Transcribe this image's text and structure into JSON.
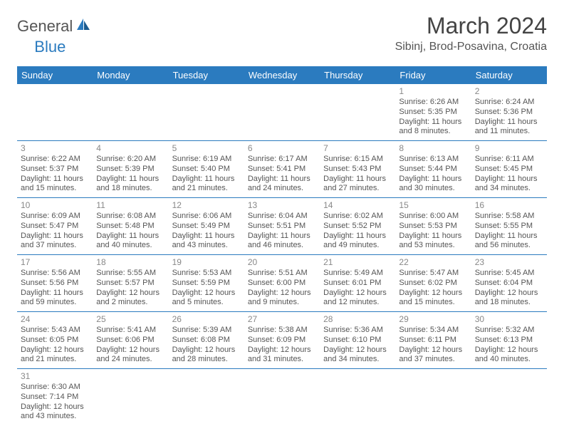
{
  "logo": {
    "general": "General",
    "blue": "Blue"
  },
  "title": "March 2024",
  "location": "Sibinj, Brod-Posavina, Croatia",
  "colors": {
    "header_bg": "#2b7bbf",
    "header_fg": "#ffffff",
    "border": "#2b7bbf"
  },
  "day_headers": [
    "Sunday",
    "Monday",
    "Tuesday",
    "Wednesday",
    "Thursday",
    "Friday",
    "Saturday"
  ],
  "weeks": [
    [
      null,
      null,
      null,
      null,
      null,
      {
        "n": "1",
        "sr": "Sunrise: 6:26 AM",
        "ss": "Sunset: 5:35 PM",
        "dl": "Daylight: 11 hours and 8 minutes."
      },
      {
        "n": "2",
        "sr": "Sunrise: 6:24 AM",
        "ss": "Sunset: 5:36 PM",
        "dl": "Daylight: 11 hours and 11 minutes."
      }
    ],
    [
      {
        "n": "3",
        "sr": "Sunrise: 6:22 AM",
        "ss": "Sunset: 5:37 PM",
        "dl": "Daylight: 11 hours and 15 minutes."
      },
      {
        "n": "4",
        "sr": "Sunrise: 6:20 AM",
        "ss": "Sunset: 5:39 PM",
        "dl": "Daylight: 11 hours and 18 minutes."
      },
      {
        "n": "5",
        "sr": "Sunrise: 6:19 AM",
        "ss": "Sunset: 5:40 PM",
        "dl": "Daylight: 11 hours and 21 minutes."
      },
      {
        "n": "6",
        "sr": "Sunrise: 6:17 AM",
        "ss": "Sunset: 5:41 PM",
        "dl": "Daylight: 11 hours and 24 minutes."
      },
      {
        "n": "7",
        "sr": "Sunrise: 6:15 AM",
        "ss": "Sunset: 5:43 PM",
        "dl": "Daylight: 11 hours and 27 minutes."
      },
      {
        "n": "8",
        "sr": "Sunrise: 6:13 AM",
        "ss": "Sunset: 5:44 PM",
        "dl": "Daylight: 11 hours and 30 minutes."
      },
      {
        "n": "9",
        "sr": "Sunrise: 6:11 AM",
        "ss": "Sunset: 5:45 PM",
        "dl": "Daylight: 11 hours and 34 minutes."
      }
    ],
    [
      {
        "n": "10",
        "sr": "Sunrise: 6:09 AM",
        "ss": "Sunset: 5:47 PM",
        "dl": "Daylight: 11 hours and 37 minutes."
      },
      {
        "n": "11",
        "sr": "Sunrise: 6:08 AM",
        "ss": "Sunset: 5:48 PM",
        "dl": "Daylight: 11 hours and 40 minutes."
      },
      {
        "n": "12",
        "sr": "Sunrise: 6:06 AM",
        "ss": "Sunset: 5:49 PM",
        "dl": "Daylight: 11 hours and 43 minutes."
      },
      {
        "n": "13",
        "sr": "Sunrise: 6:04 AM",
        "ss": "Sunset: 5:51 PM",
        "dl": "Daylight: 11 hours and 46 minutes."
      },
      {
        "n": "14",
        "sr": "Sunrise: 6:02 AM",
        "ss": "Sunset: 5:52 PM",
        "dl": "Daylight: 11 hours and 49 minutes."
      },
      {
        "n": "15",
        "sr": "Sunrise: 6:00 AM",
        "ss": "Sunset: 5:53 PM",
        "dl": "Daylight: 11 hours and 53 minutes."
      },
      {
        "n": "16",
        "sr": "Sunrise: 5:58 AM",
        "ss": "Sunset: 5:55 PM",
        "dl": "Daylight: 11 hours and 56 minutes."
      }
    ],
    [
      {
        "n": "17",
        "sr": "Sunrise: 5:56 AM",
        "ss": "Sunset: 5:56 PM",
        "dl": "Daylight: 11 hours and 59 minutes."
      },
      {
        "n": "18",
        "sr": "Sunrise: 5:55 AM",
        "ss": "Sunset: 5:57 PM",
        "dl": "Daylight: 12 hours and 2 minutes."
      },
      {
        "n": "19",
        "sr": "Sunrise: 5:53 AM",
        "ss": "Sunset: 5:59 PM",
        "dl": "Daylight: 12 hours and 5 minutes."
      },
      {
        "n": "20",
        "sr": "Sunrise: 5:51 AM",
        "ss": "Sunset: 6:00 PM",
        "dl": "Daylight: 12 hours and 9 minutes."
      },
      {
        "n": "21",
        "sr": "Sunrise: 5:49 AM",
        "ss": "Sunset: 6:01 PM",
        "dl": "Daylight: 12 hours and 12 minutes."
      },
      {
        "n": "22",
        "sr": "Sunrise: 5:47 AM",
        "ss": "Sunset: 6:02 PM",
        "dl": "Daylight: 12 hours and 15 minutes."
      },
      {
        "n": "23",
        "sr": "Sunrise: 5:45 AM",
        "ss": "Sunset: 6:04 PM",
        "dl": "Daylight: 12 hours and 18 minutes."
      }
    ],
    [
      {
        "n": "24",
        "sr": "Sunrise: 5:43 AM",
        "ss": "Sunset: 6:05 PM",
        "dl": "Daylight: 12 hours and 21 minutes."
      },
      {
        "n": "25",
        "sr": "Sunrise: 5:41 AM",
        "ss": "Sunset: 6:06 PM",
        "dl": "Daylight: 12 hours and 24 minutes."
      },
      {
        "n": "26",
        "sr": "Sunrise: 5:39 AM",
        "ss": "Sunset: 6:08 PM",
        "dl": "Daylight: 12 hours and 28 minutes."
      },
      {
        "n": "27",
        "sr": "Sunrise: 5:38 AM",
        "ss": "Sunset: 6:09 PM",
        "dl": "Daylight: 12 hours and 31 minutes."
      },
      {
        "n": "28",
        "sr": "Sunrise: 5:36 AM",
        "ss": "Sunset: 6:10 PM",
        "dl": "Daylight: 12 hours and 34 minutes."
      },
      {
        "n": "29",
        "sr": "Sunrise: 5:34 AM",
        "ss": "Sunset: 6:11 PM",
        "dl": "Daylight: 12 hours and 37 minutes."
      },
      {
        "n": "30",
        "sr": "Sunrise: 5:32 AM",
        "ss": "Sunset: 6:13 PM",
        "dl": "Daylight: 12 hours and 40 minutes."
      }
    ],
    [
      {
        "n": "31",
        "sr": "Sunrise: 6:30 AM",
        "ss": "Sunset: 7:14 PM",
        "dl": "Daylight: 12 hours and 43 minutes."
      },
      null,
      null,
      null,
      null,
      null,
      null
    ]
  ]
}
